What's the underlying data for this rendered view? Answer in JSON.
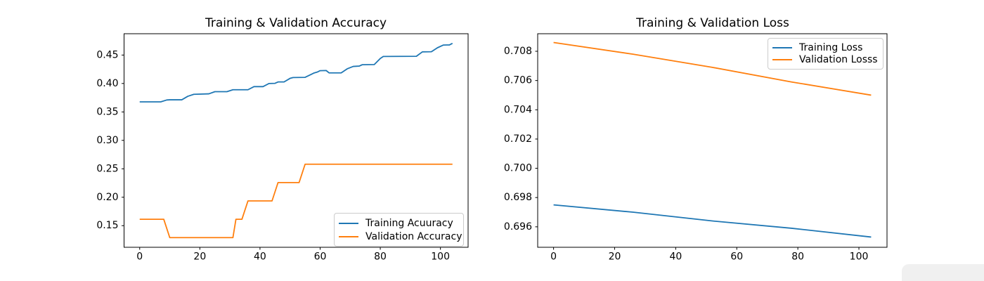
{
  "figure": {
    "background": "#ffffff",
    "spine_color": "#000000",
    "tick_color": "#000000",
    "legend_border_color": "#cccccc",
    "overlay_blob_color": "#f0f0f0",
    "series_colors": {
      "blue": "#1f77b4",
      "orange": "#ff7f0e"
    }
  },
  "chart_data": [
    {
      "type": "line",
      "title": "Training & Validation Accuracy",
      "xlabel": "",
      "ylabel": "",
      "xlim": [
        -5.2,
        109.2
      ],
      "ylim": [
        0.112,
        0.4875
      ],
      "grid": false,
      "xticks": [
        0,
        20,
        40,
        60,
        80,
        100
      ],
      "xtick_labels": [
        "0",
        "20",
        "40",
        "60",
        "80",
        "100"
      ],
      "yticks": [
        0.15,
        0.2,
        0.25,
        0.3,
        0.35,
        0.4,
        0.45
      ],
      "ytick_labels": [
        "0.15",
        "0.20",
        "0.25",
        "0.30",
        "0.35",
        "0.40",
        "0.45"
      ],
      "legend": {
        "position": "lower right"
      },
      "series": [
        {
          "name": "Training Acuuracy",
          "color": "#1f77b4",
          "points": [
            [
              0,
              0.3677
            ],
            [
              7,
              0.3677
            ],
            [
              9,
              0.371
            ],
            [
              10,
              0.3713
            ],
            [
              14,
              0.3713
            ],
            [
              16,
              0.3775
            ],
            [
              18,
              0.381
            ],
            [
              23,
              0.3818
            ],
            [
              25,
              0.3856
            ],
            [
              29,
              0.3856
            ],
            [
              31,
              0.389
            ],
            [
              36,
              0.389
            ],
            [
              38,
              0.3945
            ],
            [
              41,
              0.3945
            ],
            [
              43,
              0.4
            ],
            [
              45,
              0.4003
            ],
            [
              46,
              0.4027
            ],
            [
              48,
              0.4027
            ],
            [
              50,
              0.409
            ],
            [
              51,
              0.4105
            ],
            [
              55,
              0.4108
            ],
            [
              57,
              0.416
            ],
            [
              58,
              0.4185
            ],
            [
              59,
              0.42
            ],
            [
              60,
              0.4225
            ],
            [
              62,
              0.4228
            ],
            [
              63,
              0.4186
            ],
            [
              67,
              0.4186
            ],
            [
              69,
              0.4258
            ],
            [
              71,
              0.43
            ],
            [
              73,
              0.4306
            ],
            [
              74,
              0.433
            ],
            [
              78,
              0.4333
            ],
            [
              80,
              0.444
            ],
            [
              81,
              0.4475
            ],
            [
              92,
              0.4478
            ],
            [
              94,
              0.4556
            ],
            [
              97,
              0.4558
            ],
            [
              99,
              0.4628
            ],
            [
              101,
              0.4676
            ],
            [
              103,
              0.4678
            ],
            [
              104,
              0.4706
            ]
          ]
        },
        {
          "name": "Validation Accuracy",
          "color": "#ff7f0e",
          "points": [
            [
              0,
              0.1613
            ],
            [
              8,
              0.1613
            ],
            [
              10,
              0.129
            ],
            [
              31,
              0.129
            ],
            [
              32,
              0.1613
            ],
            [
              34,
              0.1613
            ],
            [
              36,
              0.1935
            ],
            [
              44,
              0.1935
            ],
            [
              46,
              0.2258
            ],
            [
              53,
              0.2258
            ],
            [
              55,
              0.2581
            ],
            [
              104,
              0.2581
            ]
          ]
        }
      ]
    },
    {
      "type": "line",
      "title": "Training & Validation Loss",
      "xlabel": "",
      "ylabel": "",
      "xlim": [
        -5.2,
        109.2
      ],
      "ylim": [
        0.6946,
        0.7092
      ],
      "grid": false,
      "xticks": [
        0,
        20,
        40,
        60,
        80,
        100
      ],
      "xtick_labels": [
        "0",
        "20",
        "40",
        "60",
        "80",
        "100"
      ],
      "yticks": [
        0.696,
        0.698,
        0.7,
        0.702,
        0.704,
        0.706,
        0.708
      ],
      "ytick_labels": [
        "0.696",
        "0.698",
        "0.700",
        "0.702",
        "0.704",
        "0.706",
        "0.708"
      ],
      "legend": {
        "position": "upper right"
      },
      "series": [
        {
          "name": "Training Loss",
          "color": "#1f77b4",
          "points": [
            [
              0,
              0.6975
            ],
            [
              26,
              0.697
            ],
            [
              52,
              0.6964
            ],
            [
              78,
              0.6959
            ],
            [
              104,
              0.6953
            ]
          ]
        },
        {
          "name": "Validation Losss",
          "color": "#ff7f0e",
          "points": [
            [
              0,
              0.7086
            ],
            [
              26,
              0.7078
            ],
            [
              52,
              0.7069
            ],
            [
              78,
              0.7059
            ],
            [
              104,
              0.705
            ]
          ]
        }
      ]
    }
  ]
}
